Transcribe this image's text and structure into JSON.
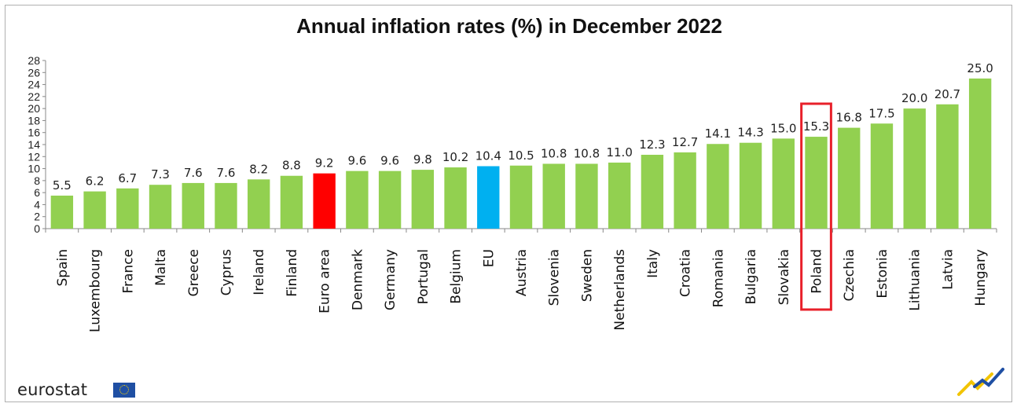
{
  "chart_data": {
    "type": "bar",
    "title": "Annual inflation rates (%) in December 2022",
    "categories": [
      "Spain",
      "Luxembourg",
      "France",
      "Malta",
      "Greece",
      "Cyprus",
      "Ireland",
      "Finland",
      "Euro area",
      "Denmark",
      "Germany",
      "Portugal",
      "Belgium",
      "EU",
      "Austria",
      "Slovenia",
      "Sweden",
      "Netherlands",
      "Italy",
      "Croatia",
      "Romania",
      "Bulgaria",
      "Slovakia",
      "Poland",
      "Czechia",
      "Estonia",
      "Lithuania",
      "Latvia",
      "Hungary"
    ],
    "values": [
      5.5,
      6.2,
      6.7,
      7.3,
      7.6,
      7.6,
      8.2,
      8.8,
      9.2,
      9.6,
      9.6,
      9.8,
      10.2,
      10.4,
      10.5,
      10.8,
      10.8,
      11.0,
      12.3,
      12.7,
      14.1,
      14.3,
      15.0,
      15.3,
      16.8,
      17.5,
      20.0,
      20.7,
      25.0
    ],
    "value_labels": [
      "5.5",
      "6.2",
      "6.7",
      "7.3",
      "7.6",
      "7.6",
      "8.2",
      "8.8",
      "9.2",
      "9.6",
      "9.6",
      "9.8",
      "10.2",
      "10.4",
      "10.5",
      "10.8",
      "10.8",
      "11.0",
      "12.3",
      "12.7",
      "14.1",
      "14.3",
      "15.0",
      "15.3",
      "16.8",
      "17.5",
      "20.0",
      "20.7",
      "25.0"
    ],
    "ylim": [
      0,
      28
    ],
    "yticks": [
      "0",
      "2",
      "4",
      "6",
      "8",
      "10",
      "12",
      "14",
      "16",
      "18",
      "20",
      "22",
      "24",
      "26",
      "28"
    ],
    "xlabel": "",
    "ylabel": "",
    "grid": false,
    "colors": {
      "default": "#92d050",
      "Euro area": "#ff0000",
      "EU": "#00b0f0"
    },
    "highlight": {
      "category": "Poland",
      "outline_color": "#e8202a"
    }
  },
  "branding": {
    "logo_text": "eurostat",
    "flag_icon": "eu-flag-icon",
    "corner_icon": "eurostat-chart-mark-icon"
  }
}
